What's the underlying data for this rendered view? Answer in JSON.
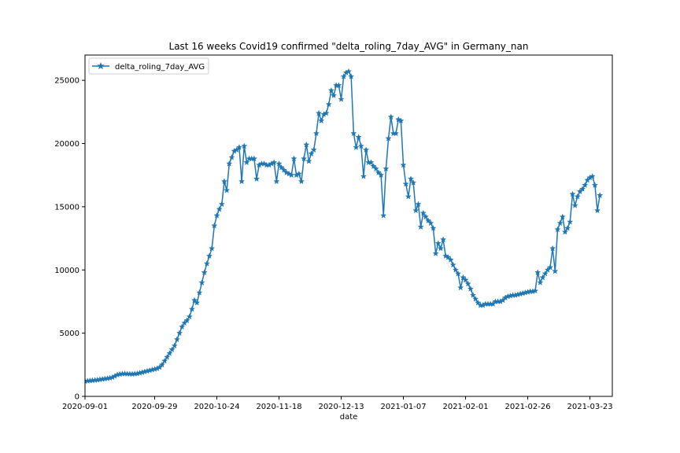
{
  "chart_data": {
    "type": "line",
    "title": "Last 16 weeks Covid19 confirmed \"delta_roling_7day_AVG\" in Germany_nan",
    "xlabel": "date",
    "ylabel": "",
    "x_start": "2020-09-01",
    "x_end": "2021-04-01",
    "xticks": [
      "2020-09-01",
      "2020-09-29",
      "2020-10-24",
      "2020-11-18",
      "2020-12-13",
      "2021-01-07",
      "2021-02-01",
      "2021-02-26",
      "2021-03-23"
    ],
    "ylim": [
      0,
      27000
    ],
    "yticks": [
      0,
      5000,
      10000,
      15000,
      20000,
      25000
    ],
    "legend_position": "top-left",
    "grid": false,
    "series": [
      {
        "name": "delta_roling_7day_AVG",
        "color": "#1f77b4",
        "marker": "star",
        "values": [
          1200,
          1220,
          1240,
          1260,
          1280,
          1300,
          1330,
          1360,
          1390,
          1420,
          1450,
          1500,
          1600,
          1700,
          1750,
          1780,
          1790,
          1780,
          1770,
          1760,
          1780,
          1800,
          1850,
          1900,
          1950,
          2000,
          2050,
          2100,
          2150,
          2200,
          2300,
          2500,
          2800,
          3100,
          3400,
          3700,
          4000,
          4500,
          5000,
          5500,
          5800,
          6000,
          6300,
          6900,
          7600,
          7400,
          8200,
          9000,
          9800,
          10500,
          11100,
          11700,
          13500,
          14300,
          14800,
          15200,
          17000,
          16300,
          18400,
          18900,
          19400,
          19500,
          19700,
          17000,
          19800,
          18500,
          18800,
          18800,
          18800,
          17200,
          18300,
          18400,
          18400,
          18300,
          18300,
          18400,
          18500,
          17000,
          18400,
          18100,
          17900,
          17700,
          17600,
          17500,
          18800,
          17500,
          17600,
          17000,
          18800,
          19900,
          18600,
          19200,
          19500,
          20800,
          22400,
          21800,
          22300,
          22400,
          23100,
          24200,
          23800,
          24600,
          24600,
          23500,
          25300,
          25600,
          25700,
          25300,
          20800,
          19700,
          20500,
          19800,
          17400,
          19500,
          18500,
          18500,
          18200,
          18000,
          17700,
          17500,
          14300,
          18000,
          20400,
          22100,
          20800,
          20800,
          21900,
          21800,
          18300,
          16800,
          15800,
          17200,
          16900,
          14700,
          15200,
          13400,
          14500,
          14200,
          13900,
          13700,
          13300,
          11300,
          12100,
          11700,
          12400,
          11100,
          11000,
          10800,
          10400,
          10000,
          9700,
          8600,
          9400,
          9200,
          8900,
          8500,
          8000,
          7700,
          7400,
          7200,
          7200,
          7300,
          7300,
          7300,
          7300,
          7500,
          7500,
          7500,
          7600,
          7800,
          7900,
          7950,
          8000,
          8000,
          8050,
          8100,
          8150,
          8200,
          8250,
          8300,
          8300,
          8350,
          9800,
          9000,
          9400,
          9700,
          10000,
          10200,
          11700,
          9900,
          13200,
          13700,
          14200,
          13000,
          13300,
          13800,
          16000,
          15100,
          15800,
          16200,
          16400,
          16700,
          17100,
          17300,
          17400,
          16700,
          14700,
          15900
        ]
      }
    ]
  }
}
